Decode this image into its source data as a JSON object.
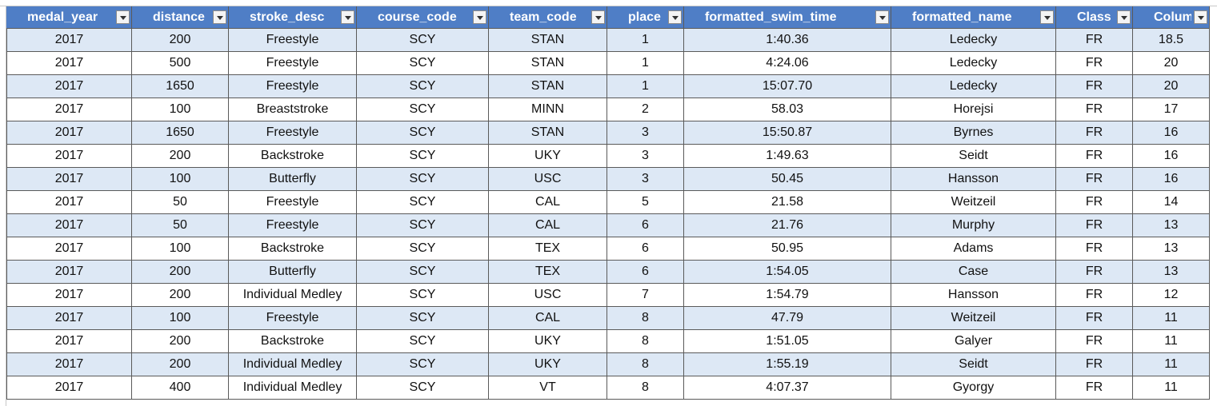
{
  "table": {
    "headers": [
      "medal_year",
      "distance",
      "stroke_desc",
      "course_code",
      "team_code",
      "place",
      "formatted_swim_time",
      "formatted_name",
      "Class",
      "Column"
    ],
    "rows": [
      [
        2017,
        200,
        "Freestyle",
        "SCY",
        "STAN",
        1,
        "1:40.36",
        "Ledecky",
        "FR",
        18.5
      ],
      [
        2017,
        500,
        "Freestyle",
        "SCY",
        "STAN",
        1,
        "4:24.06",
        "Ledecky",
        "FR",
        20
      ],
      [
        2017,
        1650,
        "Freestyle",
        "SCY",
        "STAN",
        1,
        "15:07.70",
        "Ledecky",
        "FR",
        20
      ],
      [
        2017,
        100,
        "Breaststroke",
        "SCY",
        "MINN",
        2,
        "58.03",
        "Horejsi",
        "FR",
        17
      ],
      [
        2017,
        1650,
        "Freestyle",
        "SCY",
        "STAN",
        3,
        "15:50.87",
        "Byrnes",
        "FR",
        16
      ],
      [
        2017,
        200,
        "Backstroke",
        "SCY",
        "UKY",
        3,
        "1:49.63",
        "Seidt",
        "FR",
        16
      ],
      [
        2017,
        100,
        "Butterfly",
        "SCY",
        "USC",
        3,
        "50.45",
        "Hansson",
        "FR",
        16
      ],
      [
        2017,
        50,
        "Freestyle",
        "SCY",
        "CAL",
        5,
        "21.58",
        "Weitzeil",
        "FR",
        14
      ],
      [
        2017,
        50,
        "Freestyle",
        "SCY",
        "CAL",
        6,
        "21.76",
        "Murphy",
        "FR",
        13
      ],
      [
        2017,
        100,
        "Backstroke",
        "SCY",
        "TEX",
        6,
        "50.95",
        "Adams",
        "FR",
        13
      ],
      [
        2017,
        200,
        "Butterfly",
        "SCY",
        "TEX",
        6,
        "1:54.05",
        "Case",
        "FR",
        13
      ],
      [
        2017,
        200,
        "Individual Medley",
        "SCY",
        "USC",
        7,
        "1:54.79",
        "Hansson",
        "FR",
        12
      ],
      [
        2017,
        100,
        "Freestyle",
        "SCY",
        "CAL",
        8,
        "47.79",
        "Weitzeil",
        "FR",
        11
      ],
      [
        2017,
        200,
        "Backstroke",
        "SCY",
        "UKY",
        8,
        "1:51.05",
        "Galyer",
        "FR",
        11
      ],
      [
        2017,
        200,
        "Individual Medley",
        "SCY",
        "UKY",
        8,
        "1:55.19",
        "Seidt",
        "FR",
        11
      ],
      [
        2017,
        400,
        "Individual Medley",
        "SCY",
        "VT",
        8,
        "4:07.37",
        "Gyorgy",
        "FR",
        11
      ]
    ]
  }
}
